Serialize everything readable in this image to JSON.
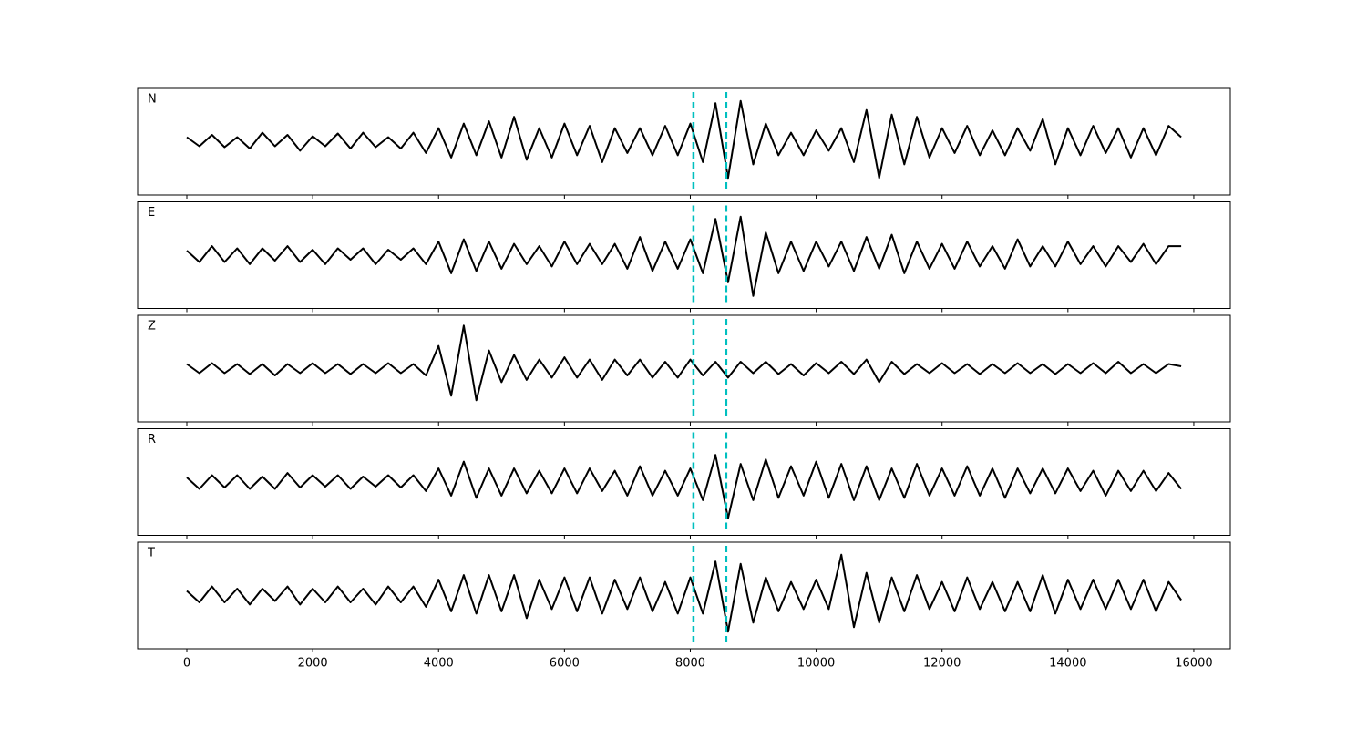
{
  "chart_data": {
    "type": "line",
    "x": [
      0,
      200,
      400,
      600,
      800,
      1000,
      1200,
      1400,
      1600,
      1800,
      2000,
      2200,
      2400,
      2600,
      2800,
      3000,
      3200,
      3400,
      3600,
      3800,
      4000,
      4200,
      4400,
      4600,
      4800,
      5000,
      5200,
      5400,
      5600,
      5800,
      6000,
      6200,
      6400,
      6600,
      6800,
      7000,
      7200,
      7400,
      7600,
      7800,
      8000,
      8200,
      8400,
      8600,
      8800,
      9000,
      9200,
      9400,
      9600,
      9800,
      10000,
      10200,
      10400,
      10600,
      10800,
      11000,
      11200,
      11400,
      11600,
      11800,
      12000,
      12200,
      12400,
      12600,
      12800,
      13000,
      13200,
      13400,
      13600,
      13800,
      14000,
      14200,
      14400,
      14600,
      14800,
      15000,
      15200,
      15400,
      15600,
      15800
    ],
    "xlim": [
      -782,
      16580
    ],
    "xticks": [
      0,
      2000,
      4000,
      6000,
      8000,
      10000,
      12000,
      14000,
      16000
    ],
    "ylim": [
      -1,
      1
    ],
    "vlines": [
      {
        "value": 8050,
        "color": "#00bfbf"
      },
      {
        "value": 8570,
        "color": "#00bfbf"
      }
    ],
    "series": [
      {
        "name": "N",
        "color": "#000000",
        "values": [
          0.1,
          -0.1,
          0.15,
          -0.12,
          0.1,
          -0.15,
          0.2,
          -0.1,
          0.15,
          -0.2,
          0.12,
          -0.1,
          0.18,
          -0.15,
          0.2,
          -0.12,
          0.1,
          -0.15,
          0.2,
          -0.25,
          0.3,
          -0.35,
          0.4,
          -0.3,
          0.45,
          -0.35,
          0.55,
          -0.4,
          0.3,
          -0.35,
          0.4,
          -0.3,
          0.35,
          -0.45,
          0.3,
          -0.25,
          0.3,
          -0.3,
          0.35,
          -0.3,
          0.4,
          -0.45,
          0.85,
          -0.8,
          0.9,
          -0.5,
          0.4,
          -0.3,
          0.2,
          -0.3,
          0.25,
          -0.2,
          0.3,
          -0.45,
          0.7,
          -0.8,
          0.6,
          -0.5,
          0.55,
          -0.35,
          0.3,
          -0.25,
          0.35,
          -0.3,
          0.25,
          -0.3,
          0.3,
          -0.2,
          0.5,
          -0.5,
          0.3,
          -0.3,
          0.35,
          -0.25,
          0.3,
          -0.35,
          0.3,
          -0.3,
          0.35,
          0.1
        ]
      },
      {
        "name": "E",
        "color": "#000000",
        "values": [
          0.1,
          -0.15,
          0.2,
          -0.15,
          0.15,
          -0.2,
          0.15,
          -0.12,
          0.2,
          -0.15,
          0.12,
          -0.2,
          0.15,
          -0.1,
          0.15,
          -0.2,
          0.12,
          -0.1,
          0.15,
          -0.2,
          0.3,
          -0.4,
          0.35,
          -0.35,
          0.3,
          -0.3,
          0.25,
          -0.2,
          0.2,
          -0.25,
          0.3,
          -0.2,
          0.25,
          -0.2,
          0.25,
          -0.3,
          0.4,
          -0.35,
          0.3,
          -0.3,
          0.35,
          -0.4,
          0.8,
          -0.6,
          0.85,
          -0.9,
          0.5,
          -0.4,
          0.3,
          -0.35,
          0.3,
          -0.25,
          0.3,
          -0.35,
          0.4,
          -0.3,
          0.45,
          -0.4,
          0.3,
          -0.3,
          0.25,
          -0.3,
          0.3,
          -0.25,
          0.2,
          -0.3,
          0.35,
          -0.25,
          0.2,
          -0.25,
          0.3,
          -0.2,
          0.2,
          -0.25,
          0.2,
          -0.15,
          0.25,
          -0.2,
          0.2,
          0.2
        ]
      },
      {
        "name": "Z",
        "color": "#000000",
        "values": [
          0.1,
          -0.1,
          0.12,
          -0.1,
          0.1,
          -0.12,
          0.1,
          -0.15,
          0.1,
          -0.1,
          0.12,
          -0.1,
          0.1,
          -0.12,
          0.1,
          -0.1,
          0.12,
          -0.1,
          0.1,
          -0.15,
          0.5,
          -0.6,
          0.95,
          -0.7,
          0.4,
          -0.3,
          0.3,
          -0.25,
          0.2,
          -0.2,
          0.25,
          -0.2,
          0.2,
          -0.25,
          0.2,
          -0.15,
          0.2,
          -0.2,
          0.15,
          -0.2,
          0.2,
          -0.15,
          0.15,
          -0.2,
          0.15,
          -0.1,
          0.15,
          -0.12,
          0.1,
          -0.15,
          0.12,
          -0.1,
          0.15,
          -0.12,
          0.2,
          -0.3,
          0.15,
          -0.12,
          0.1,
          -0.1,
          0.12,
          -0.1,
          0.1,
          -0.12,
          0.1,
          -0.1,
          0.12,
          -0.1,
          0.1,
          -0.12,
          0.1,
          -0.1,
          0.12,
          -0.1,
          0.15,
          -0.1,
          0.1,
          -0.1,
          0.1,
          0.05
        ]
      },
      {
        "name": "R",
        "color": "#000000",
        "values": [
          0.1,
          -0.15,
          0.15,
          -0.12,
          0.15,
          -0.15,
          0.12,
          -0.15,
          0.2,
          -0.12,
          0.15,
          -0.1,
          0.15,
          -0.15,
          0.12,
          -0.1,
          0.15,
          -0.12,
          0.15,
          -0.2,
          0.3,
          -0.3,
          0.45,
          -0.35,
          0.3,
          -0.3,
          0.3,
          -0.25,
          0.25,
          -0.25,
          0.3,
          -0.25,
          0.3,
          -0.2,
          0.25,
          -0.3,
          0.35,
          -0.3,
          0.25,
          -0.3,
          0.3,
          -0.4,
          0.6,
          -0.8,
          0.4,
          -0.4,
          0.5,
          -0.35,
          0.35,
          -0.3,
          0.45,
          -0.35,
          0.4,
          -0.4,
          0.35,
          -0.4,
          0.3,
          -0.35,
          0.4,
          -0.3,
          0.3,
          -0.3,
          0.35,
          -0.3,
          0.3,
          -0.35,
          0.3,
          -0.25,
          0.3,
          -0.25,
          0.3,
          -0.2,
          0.25,
          -0.3,
          0.25,
          -0.2,
          0.25,
          -0.2,
          0.2,
          -0.15
        ]
      },
      {
        "name": "T",
        "color": "#000000",
        "values": [
          0.1,
          -0.15,
          0.2,
          -0.15,
          0.15,
          -0.2,
          0.15,
          -0.12,
          0.2,
          -0.2,
          0.15,
          -0.15,
          0.2,
          -0.15,
          0.15,
          -0.2,
          0.2,
          -0.15,
          0.2,
          -0.25,
          0.35,
          -0.35,
          0.45,
          -0.4,
          0.45,
          -0.35,
          0.45,
          -0.5,
          0.35,
          -0.3,
          0.4,
          -0.35,
          0.4,
          -0.4,
          0.35,
          -0.3,
          0.4,
          -0.35,
          0.3,
          -0.4,
          0.4,
          -0.4,
          0.75,
          -0.8,
          0.7,
          -0.6,
          0.4,
          -0.35,
          0.3,
          -0.3,
          0.35,
          -0.3,
          0.9,
          -0.7,
          0.5,
          -0.6,
          0.4,
          -0.35,
          0.45,
          -0.3,
          0.3,
          -0.35,
          0.4,
          -0.3,
          0.3,
          -0.35,
          0.3,
          -0.35,
          0.45,
          -0.4,
          0.35,
          -0.3,
          0.35,
          -0.3,
          0.35,
          -0.3,
          0.35,
          -0.35,
          0.3,
          -0.1
        ]
      }
    ]
  }
}
